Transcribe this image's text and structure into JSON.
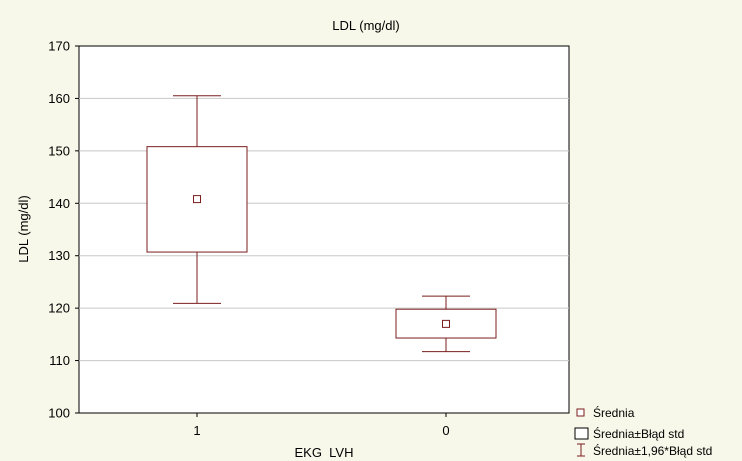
{
  "chart_data": {
    "type": "boxplot",
    "title": "LDL (mg/dl)",
    "xlabel": "EKG  LVH",
    "ylabel": "LDL (mg/dl)",
    "ylim": [
      100,
      170
    ],
    "yticks": [
      100,
      110,
      120,
      130,
      140,
      150,
      160,
      170
    ],
    "grid": true,
    "legend_position": "bottom-right",
    "categories": [
      "1",
      "0"
    ],
    "series": [
      {
        "category": "1",
        "mean": 140.8,
        "box_low": 130.7,
        "box_high": 150.8,
        "whisker_low": 120.9,
        "whisker_high": 160.5
      },
      {
        "category": "0",
        "mean": 117.0,
        "box_low": 114.3,
        "box_high": 119.8,
        "whisker_low": 111.7,
        "whisker_high": 122.3
      }
    ],
    "legend": [
      {
        "marker": "point",
        "label": "Średnia"
      },
      {
        "marker": "box",
        "label": "Średnia±Błąd std"
      },
      {
        "marker": "whisker",
        "label": "Średnia±1,96*Błąd std"
      }
    ],
    "colors": {
      "box": "#7a1e1e",
      "background": "#f8f8ea",
      "plot": "#ffffff",
      "grid": "#c8c8c8"
    }
  }
}
